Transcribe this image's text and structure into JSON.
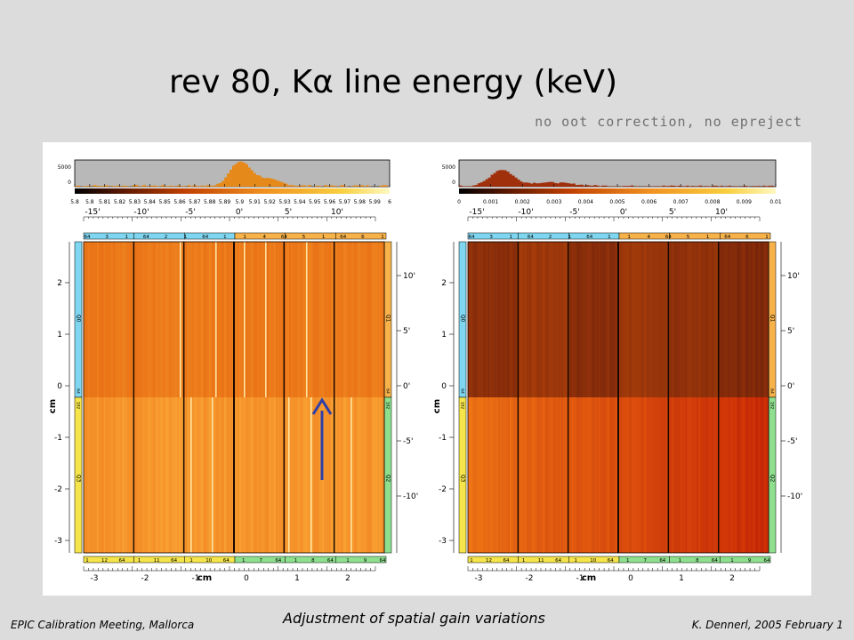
{
  "slide": {
    "title": "rev 80, Kα line energy (keV)",
    "subtitle": "no oot correction, no epreject",
    "footer_left": "EPIC Calibration Meeting, Mallorca",
    "footer_center": "Adjustment of spatial gain variations",
    "footer_right": "K. Dennerl, 2005 February 1"
  },
  "figure": {
    "arrow_color": "#2f3fa8",
    "panels": [
      {
        "histogram": {
          "ytick_labels": [
            "5000",
            "0"
          ],
          "xtick_labels": [
            "5.8",
            "5.8",
            "5.81",
            "5.82",
            "5.83",
            "5.84",
            "5.85",
            "5.86",
            "5.87",
            "5.88",
            "5.89",
            "5.9",
            "5.91",
            "5.92",
            "5.93",
            "5.94",
            "5.95",
            "5.96",
            "5.97",
            "5.98",
            "5.99",
            "6"
          ]
        },
        "top_arcmin_labels": [
          "-15'",
          "-10'",
          "-5'",
          "0'",
          "5'",
          "10'"
        ],
        "top_ccd_strip": [
          "64",
          "3",
          "1",
          "64",
          "2",
          "1",
          "64",
          "1",
          "1",
          "4",
          "64",
          "5",
          "1",
          "64",
          "6",
          "1"
        ],
        "bottom_ccd_strip": [
          "1",
          "12",
          "64",
          "1",
          "11",
          "64",
          "1",
          "10",
          "64",
          "1",
          "7",
          "64",
          "1",
          "8",
          "64",
          "1",
          "9",
          "64"
        ],
        "left_cm_ticks": [
          "2",
          "1",
          "0",
          "-1",
          "-2",
          "-3"
        ],
        "left_axis_label": "cm",
        "right_arcmin_ticks": [
          "10'",
          "5'",
          "0'",
          "-5'",
          "-10'"
        ],
        "left_quadrant_labels": [
          "Q0",
          "Q3"
        ],
        "right_quadrant_labels": [
          "Q1",
          "Q2"
        ],
        "side_small_labels": [
          "64",
          "192",
          "64",
          "192"
        ],
        "bottom_cm_ticks": [
          "-3",
          "-2",
          "-1",
          "0",
          "1",
          "2"
        ],
        "bottom_axis_label": "cm"
      },
      {
        "histogram": {
          "ytick_labels": [
            "5000",
            "0"
          ],
          "xtick_labels": [
            "0",
            "0.001",
            "0.002",
            "0.003",
            "0.004",
            "0.005",
            "0.006",
            "0.007",
            "0.008",
            "0.009",
            "0.01"
          ]
        },
        "top_arcmin_labels": [
          "-15'",
          "-10'",
          "-5'",
          "0'",
          "5'",
          "10'"
        ],
        "top_ccd_strip": [
          "64",
          "3",
          "1",
          "64",
          "2",
          "1",
          "64",
          "1",
          "1",
          "4",
          "64",
          "5",
          "1",
          "64",
          "6",
          "1"
        ],
        "bottom_ccd_strip": [
          "1",
          "12",
          "64",
          "1",
          "11",
          "64",
          "1",
          "10",
          "64",
          "1",
          "7",
          "64",
          "1",
          "8",
          "64",
          "1",
          "9",
          "64"
        ],
        "left_cm_ticks": [
          "2",
          "1",
          "0",
          "-1",
          "-2",
          "-3"
        ],
        "left_axis_label": "cm",
        "right_arcmin_ticks": [
          "10'",
          "5'",
          "0'",
          "-5'",
          "-10'"
        ],
        "left_quadrant_labels": [
          "Q0",
          "Q3"
        ],
        "right_quadrant_labels": [
          "Q1",
          "Q2"
        ],
        "side_small_labels": [
          "64",
          "192",
          "64",
          "192"
        ],
        "bottom_cm_ticks": [
          "-3",
          "-2",
          "-1",
          "0",
          "1",
          "2"
        ],
        "bottom_axis_label": "cm"
      }
    ]
  }
}
